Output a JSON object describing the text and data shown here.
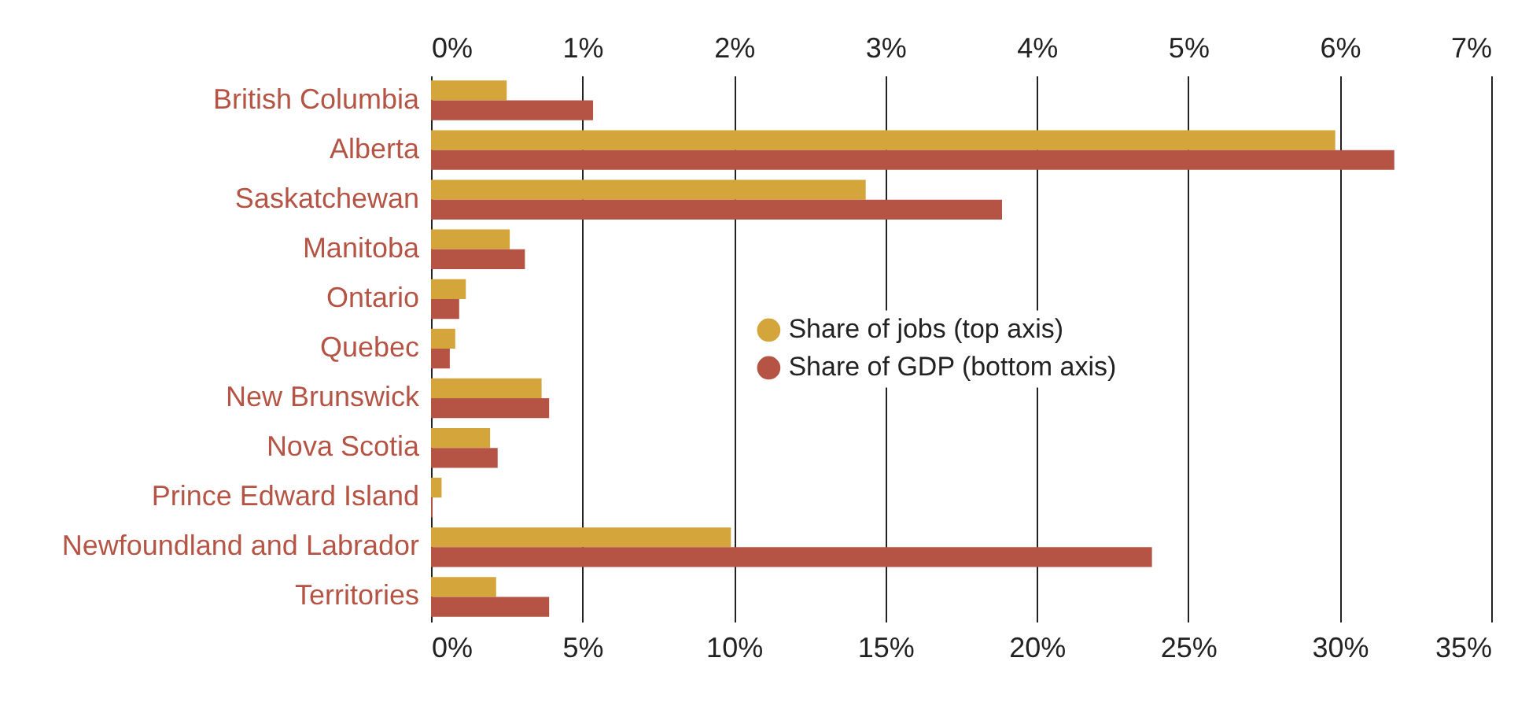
{
  "chart_data": {
    "type": "bar",
    "orientation": "horizontal",
    "categories": [
      "British Columbia",
      "Alberta",
      "Saskatchewan",
      "Manitoba",
      "Ontario",
      "Quebec",
      "New Brunswick",
      "Nova Scotia",
      "Prince Edward Island",
      "Newfoundland and Labrador",
      "Territories"
    ],
    "series": [
      {
        "name": "Share of jobs (top axis)",
        "color": "#d4a53a",
        "axis": "x2",
        "values": [
          0.5,
          5.97,
          2.87,
          0.52,
          0.23,
          0.16,
          0.73,
          0.39,
          0.07,
          1.98,
          0.43
        ]
      },
      {
        "name": "Share of GDP (bottom axis)",
        "color": "#b55444",
        "values": [
          5.35,
          31.8,
          18.85,
          3.1,
          0.93,
          0.62,
          3.9,
          2.2,
          0.05,
          23.8,
          3.9
        ]
      }
    ],
    "xlim": [
      0,
      35
    ],
    "xticks": [
      {
        "value": 0,
        "label": "0%"
      },
      {
        "value": 5,
        "label": "5%"
      },
      {
        "value": 10,
        "label": "10%"
      },
      {
        "value": 15,
        "label": "15%"
      },
      {
        "value": 20,
        "label": "20%"
      },
      {
        "value": 25,
        "label": "25%"
      },
      {
        "value": 30,
        "label": "30%"
      },
      {
        "value": 35,
        "label": "35%"
      }
    ],
    "x2lim": [
      0,
      7
    ],
    "x2ticks": [
      {
        "value": 0,
        "label": "0%"
      },
      {
        "value": 1,
        "label": "1%"
      },
      {
        "value": 2,
        "label": "2%"
      },
      {
        "value": 3,
        "label": "3%"
      },
      {
        "value": 4,
        "label": "4%"
      },
      {
        "value": 5,
        "label": "5%"
      },
      {
        "value": 6,
        "label": "6%"
      },
      {
        "value": 7,
        "label": "7%"
      }
    ],
    "grid": "x",
    "legend": "center"
  }
}
